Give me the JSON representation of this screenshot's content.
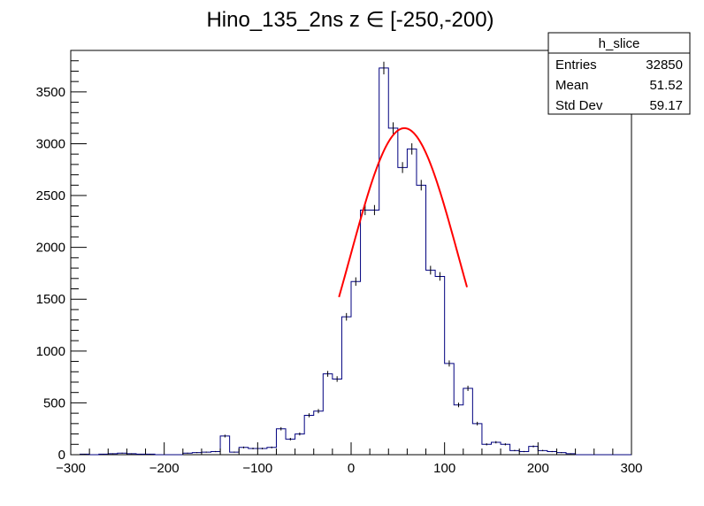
{
  "chart_data": {
    "type": "histogram",
    "title": "Hino_135_2ns z  ∈ [-250,-200)",
    "xlim": [
      -300,
      300
    ],
    "ylim": [
      0,
      3900
    ],
    "xticks": [
      "−300",
      "−200",
      "−100",
      "0",
      "100",
      "200",
      "300"
    ],
    "yticks": [
      "0",
      "500",
      "1000",
      "1500",
      "2000",
      "2500",
      "3000",
      "3500"
    ],
    "bin_width": 10,
    "bin_start": -300,
    "values": [
      0,
      5,
      0,
      5,
      10,
      15,
      10,
      5,
      5,
      0,
      0,
      0,
      15,
      20,
      25,
      30,
      180,
      25,
      70,
      60,
      60,
      70,
      250,
      150,
      200,
      380,
      420,
      780,
      730,
      1330,
      1670,
      2360,
      2360,
      3730,
      3150,
      2770,
      2950,
      2600,
      1780,
      1720,
      880,
      480,
      640,
      300,
      100,
      120,
      100,
      40,
      30,
      80,
      40,
      30,
      20,
      10,
      0,
      0,
      0,
      0,
      0,
      0
    ],
    "series_color": "#00007f",
    "fit": {
      "type": "gaussian",
      "amplitude": 3150,
      "mean": 57,
      "sigma": 58,
      "x_range": [
        -13,
        124
      ],
      "color": "#ff0000"
    },
    "stats_box": {
      "title": "h_slice",
      "rows": [
        {
          "label": "Entries",
          "value": "32850"
        },
        {
          "label": "Mean",
          "value": "51.52"
        },
        {
          "label": "Std Dev",
          "value": "59.17"
        }
      ]
    }
  }
}
